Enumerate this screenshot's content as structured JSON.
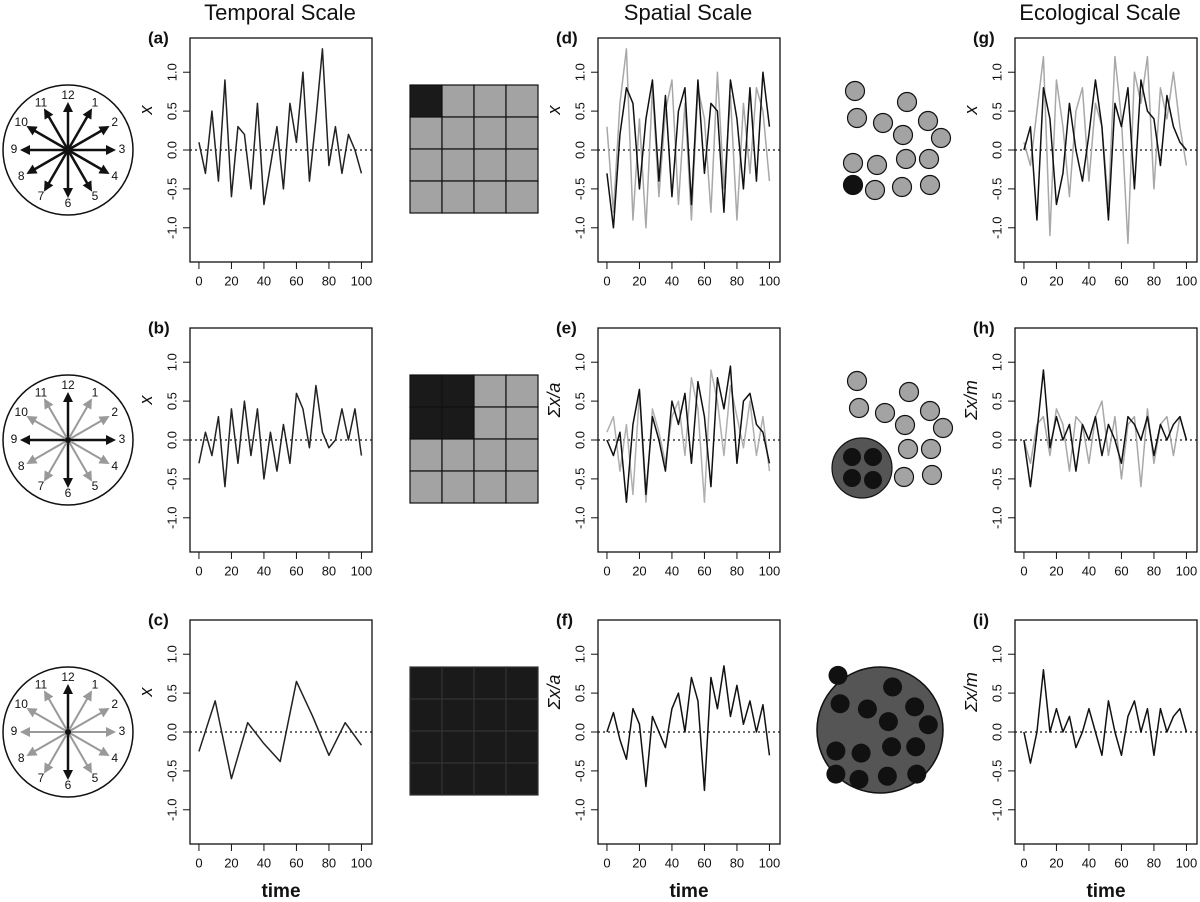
{
  "column_titles": [
    "Temporal Scale",
    "Spatial Scale",
    "Ecological Scale"
  ],
  "clock_numbers": [
    "12",
    "1",
    "2",
    "3",
    "4",
    "5",
    "6",
    "7",
    "8",
    "9",
    "10",
    "11"
  ],
  "chart_data": [
    {
      "type": "line",
      "label": "(a)",
      "ylabel": "x",
      "x": [
        0,
        4,
        8,
        12,
        16,
        20,
        24,
        28,
        32,
        36,
        40,
        44,
        48,
        52,
        56,
        60,
        64,
        68,
        72,
        76,
        80,
        84,
        88,
        92,
        96,
        100
      ],
      "xlim": [
        -5.5,
        106.5
      ],
      "ylim": [
        -1.44,
        1.44
      ],
      "xticks": [
        0,
        20,
        40,
        60,
        80,
        100
      ],
      "yticks": [
        {
          "value": -1,
          "label": "-1.0"
        },
        {
          "value": -0.5,
          "label": "-0.5"
        },
        {
          "value": 0,
          "label": "0.0"
        },
        {
          "value": 0.5,
          "label": "0.5"
        },
        {
          "value": 1,
          "label": "1.0"
        }
      ],
      "series": [
        {
          "color": "#222222",
          "values": [
            0.1,
            -0.3,
            0.5,
            -0.4,
            0.9,
            -0.6,
            0.3,
            0.2,
            -0.5,
            0.6,
            -0.7,
            -0.2,
            0.3,
            -0.5,
            0.6,
            0.1,
            1.0,
            -0.4,
            0.4,
            1.3,
            -0.2,
            0.3,
            -0.3,
            0.2,
            0.0,
            -0.3
          ]
        }
      ]
    },
    {
      "type": "line",
      "label": "(d)",
      "ylabel": "x",
      "x": [
        0,
        4,
        8,
        12,
        16,
        20,
        24,
        28,
        32,
        36,
        40,
        44,
        48,
        52,
        56,
        60,
        64,
        68,
        72,
        76,
        80,
        84,
        88,
        92,
        96,
        100
      ],
      "xlim": [
        -5.5,
        106.5
      ],
      "ylim": [
        -1.44,
        1.44
      ],
      "xticks": [
        0,
        20,
        40,
        60,
        80,
        100
      ],
      "yticks": [
        {
          "value": -1,
          "label": "-1.0"
        },
        {
          "value": -0.5,
          "label": "-0.5"
        },
        {
          "value": 0,
          "label": "0.0"
        },
        {
          "value": 0.5,
          "label": "0.5"
        },
        {
          "value": 1,
          "label": "1.0"
        }
      ],
      "series": [
        {
          "color": "#a8a8a8",
          "values": [
            0.3,
            -0.8,
            0.6,
            1.3,
            -0.9,
            0.4,
            -1.0,
            0.8,
            -0.6,
            0.5,
            0.9,
            -0.7,
            0.6,
            -0.9,
            0.8,
            0.4,
            -0.8,
            1.0,
            -0.5,
            0.7,
            -0.9,
            0.6,
            -0.3,
            0.8,
            0.5,
            -0.4
          ]
        },
        {
          "color": "#111111",
          "values": [
            -0.3,
            -1.0,
            0.2,
            0.8,
            0.6,
            -0.5,
            0.4,
            0.9,
            -0.4,
            0.7,
            -0.6,
            0.5,
            0.8,
            -0.7,
            0.9,
            -0.3,
            0.6,
            0.5,
            -0.8,
            0.9,
            0.4,
            -0.5,
            0.8,
            -0.4,
            1.0,
            0.3
          ]
        }
      ]
    },
    {
      "type": "line",
      "label": "(g)",
      "ylabel": "x",
      "x": [
        0,
        4,
        8,
        12,
        16,
        20,
        24,
        28,
        32,
        36,
        40,
        44,
        48,
        52,
        56,
        60,
        64,
        68,
        72,
        76,
        80,
        84,
        88,
        92,
        96,
        100
      ],
      "xlim": [
        -5.5,
        106.5
      ],
      "ylim": [
        -1.44,
        1.44
      ],
      "xticks": [
        0,
        20,
        40,
        60,
        80,
        100
      ],
      "yticks": [
        {
          "value": -1,
          "label": "-1.0"
        },
        {
          "value": -0.5,
          "label": "-0.5"
        },
        {
          "value": 0,
          "label": "0.0"
        },
        {
          "value": 0.5,
          "label": "0.5"
        },
        {
          "value": 1,
          "label": "1.0"
        }
      ],
      "series": [
        {
          "color": "#a8a8a8",
          "values": [
            0.1,
            -0.2,
            0.5,
            1.2,
            -1.1,
            0.9,
            0.3,
            -0.6,
            0.5,
            0.8,
            -0.4,
            0.6,
            0.3,
            -0.7,
            1.2,
            0.4,
            -1.2,
            1.0,
            0.6,
            1.2,
            -0.5,
            0.8,
            0.4,
            1.0,
            0.3,
            -0.2
          ]
        },
        {
          "color": "#111111",
          "values": [
            0.0,
            0.3,
            -0.9,
            0.8,
            0.4,
            -0.7,
            -0.3,
            0.6,
            0.0,
            -0.4,
            0.2,
            0.9,
            0.3,
            -0.9,
            0.6,
            0.3,
            0.8,
            -0.5,
            0.9,
            0.5,
            0.4,
            -0.2,
            0.7,
            0.3,
            0.1,
            0.0
          ]
        }
      ]
    },
    {
      "type": "line",
      "label": "(b)",
      "ylabel": "x",
      "x": [
        0,
        4,
        8,
        12,
        16,
        20,
        24,
        28,
        32,
        36,
        40,
        44,
        48,
        52,
        56,
        60,
        64,
        68,
        72,
        76,
        80,
        84,
        88,
        92,
        96,
        100
      ],
      "xlim": [
        -5.5,
        106.5
      ],
      "ylim": [
        -1.44,
        1.44
      ],
      "xticks": [
        0,
        20,
        40,
        60,
        80,
        100
      ],
      "yticks": [
        {
          "value": -1,
          "label": "-1.0"
        },
        {
          "value": -0.5,
          "label": "-0.5"
        },
        {
          "value": 0,
          "label": "0.0"
        },
        {
          "value": 0.5,
          "label": "0.5"
        },
        {
          "value": 1,
          "label": "1.0"
        }
      ],
      "series": [
        {
          "color": "#222222",
          "values": [
            -0.3,
            0.1,
            -0.2,
            0.3,
            -0.6,
            0.4,
            -0.3,
            0.5,
            -0.2,
            0.4,
            -0.5,
            0.1,
            -0.4,
            0.2,
            -0.3,
            0.6,
            0.4,
            -0.1,
            0.7,
            0.1,
            -0.1,
            0.0,
            0.4,
            0.0,
            0.4,
            -0.2
          ]
        }
      ]
    },
    {
      "type": "line",
      "label": "(e)",
      "ylabel": "Σx/a",
      "x": [
        0,
        4,
        8,
        12,
        16,
        20,
        24,
        28,
        32,
        36,
        40,
        44,
        48,
        52,
        56,
        60,
        64,
        68,
        72,
        76,
        80,
        84,
        88,
        92,
        96,
        100
      ],
      "xlim": [
        -5.5,
        106.5
      ],
      "ylim": [
        -1.44,
        1.44
      ],
      "xticks": [
        0,
        20,
        40,
        60,
        80,
        100
      ],
      "yticks": [
        {
          "value": -1,
          "label": "-1.0"
        },
        {
          "value": -0.5,
          "label": "-0.5"
        },
        {
          "value": 0,
          "label": "0.0"
        },
        {
          "value": 0.5,
          "label": "0.5"
        },
        {
          "value": 1,
          "label": "1.0"
        }
      ],
      "series": [
        {
          "color": "#b0b0b0",
          "values": [
            0.1,
            0.3,
            -0.4,
            0.2,
            -0.7,
            0.6,
            -0.8,
            0.4,
            0.1,
            -0.3,
            0.3,
            0.5,
            -0.2,
            0.8,
            0.4,
            -0.8,
            0.9,
            0.5,
            -0.2,
            0.7,
            0.3,
            -0.1,
            0.5,
            -0.2,
            0.3,
            -0.4
          ]
        },
        {
          "color": "#111111",
          "values": [
            0.0,
            -0.2,
            0.1,
            -0.8,
            0.2,
            0.65,
            -0.7,
            0.3,
            0.0,
            -0.4,
            0.5,
            0.2,
            0.6,
            -0.3,
            0.75,
            0.3,
            -0.6,
            0.8,
            0.4,
            0.95,
            -0.3,
            0.5,
            0.6,
            0.2,
            0.1,
            -0.3
          ]
        }
      ]
    },
    {
      "type": "line",
      "label": "(h)",
      "ylabel": "Σx/m",
      "x": [
        0,
        4,
        8,
        12,
        16,
        20,
        24,
        28,
        32,
        36,
        40,
        44,
        48,
        52,
        56,
        60,
        64,
        68,
        72,
        76,
        80,
        84,
        88,
        92,
        96,
        100
      ],
      "xlim": [
        -5.5,
        106.5
      ],
      "ylim": [
        -1.44,
        1.44
      ],
      "xticks": [
        0,
        20,
        40,
        60,
        80,
        100
      ],
      "yticks": [
        {
          "value": -1,
          "label": "-1.0"
        },
        {
          "value": -0.5,
          "label": "-0.5"
        },
        {
          "value": 0,
          "label": "0.0"
        },
        {
          "value": 0.5,
          "label": "0.5"
        },
        {
          "value": 1,
          "label": "1.0"
        }
      ],
      "series": [
        {
          "color": "#a8a8a8",
          "values": [
            0.0,
            -0.3,
            0.2,
            0.3,
            -0.2,
            0.4,
            0.2,
            -0.4,
            0.3,
            0.2,
            -0.3,
            0.3,
            0.5,
            -0.2,
            0.3,
            -0.5,
            0.2,
            0.3,
            -0.6,
            0.4,
            -0.3,
            0.2,
            0.3,
            -0.2,
            0.3,
            0.0
          ]
        },
        {
          "color": "#111111",
          "values": [
            0.0,
            -0.6,
            0.1,
            0.9,
            -0.1,
            0.3,
            0.0,
            0.2,
            -0.4,
            0.2,
            0.0,
            0.3,
            -0.2,
            0.2,
            0.0,
            -0.3,
            0.3,
            0.2,
            0.0,
            0.3,
            -0.2,
            0.2,
            0.0,
            0.2,
            0.3,
            0.0
          ]
        }
      ]
    },
    {
      "type": "line",
      "label": "(c)",
      "ylabel": "x",
      "xlabel": "time",
      "x": [
        0,
        10,
        20,
        30,
        40,
        50,
        60,
        70,
        80,
        90,
        100
      ],
      "xlim": [
        -5.5,
        106.5
      ],
      "ylim": [
        -1.44,
        1.44
      ],
      "xticks": [
        0,
        20,
        40,
        60,
        80,
        100
      ],
      "yticks": [
        {
          "value": -1,
          "label": "-1.0"
        },
        {
          "value": -0.5,
          "label": "-0.5"
        },
        {
          "value": 0,
          "label": "0.0"
        },
        {
          "value": 0.5,
          "label": "0.5"
        },
        {
          "value": 1,
          "label": "1.0"
        }
      ],
      "series": [
        {
          "color": "#222222",
          "values": [
            -0.25,
            0.4,
            -0.6,
            0.12,
            -0.15,
            -0.38,
            0.65,
            0.2,
            -0.3,
            0.12,
            -0.17
          ]
        }
      ]
    },
    {
      "type": "line",
      "label": "(f)",
      "ylabel": "Σx/a",
      "xlabel": "time",
      "x": [
        0,
        4,
        8,
        12,
        16,
        20,
        24,
        28,
        32,
        36,
        40,
        44,
        48,
        52,
        56,
        60,
        64,
        68,
        72,
        76,
        80,
        84,
        88,
        92,
        96,
        100
      ],
      "xlim": [
        -5.5,
        106.5
      ],
      "ylim": [
        -1.44,
        1.44
      ],
      "xticks": [
        0,
        20,
        40,
        60,
        80,
        100
      ],
      "yticks": [
        {
          "value": -1,
          "label": "-1.0"
        },
        {
          "value": -0.5,
          "label": "-0.5"
        },
        {
          "value": 0,
          "label": "0.0"
        },
        {
          "value": 0.5,
          "label": "0.5"
        },
        {
          "value": 1,
          "label": "1.0"
        }
      ],
      "series": [
        {
          "color": "#111111",
          "values": [
            0.0,
            0.25,
            -0.1,
            -0.35,
            0.3,
            0.1,
            -0.7,
            0.2,
            0.0,
            -0.2,
            0.3,
            0.5,
            0.0,
            0.7,
            0.4,
            -0.75,
            0.7,
            0.3,
            0.85,
            0.2,
            0.6,
            0.1,
            0.4,
            0.0,
            0.35,
            -0.3
          ]
        }
      ]
    },
    {
      "type": "line",
      "label": "(i)",
      "ylabel": "Σx/m",
      "xlabel": "time",
      "x": [
        0,
        4,
        8,
        12,
        16,
        20,
        24,
        28,
        32,
        36,
        40,
        44,
        48,
        52,
        56,
        60,
        64,
        68,
        72,
        76,
        80,
        84,
        88,
        92,
        96,
        100
      ],
      "xlim": [
        -5.5,
        106.5
      ],
      "ylim": [
        -1.44,
        1.44
      ],
      "xticks": [
        0,
        20,
        40,
        60,
        80,
        100
      ],
      "yticks": [
        {
          "value": -1,
          "label": "-1.0"
        },
        {
          "value": -0.5,
          "label": "-0.5"
        },
        {
          "value": 0,
          "label": "0.0"
        },
        {
          "value": 0.5,
          "label": "0.5"
        },
        {
          "value": 1,
          "label": "1.0"
        }
      ],
      "series": [
        {
          "color": "#111111",
          "values": [
            0.0,
            -0.4,
            0.0,
            0.8,
            0.0,
            0.3,
            0.0,
            0.2,
            -0.2,
            0.0,
            0.3,
            0.0,
            -0.3,
            0.4,
            0.0,
            -0.3,
            0.2,
            0.4,
            0.0,
            0.3,
            -0.3,
            0.3,
            0.0,
            0.2,
            0.3,
            0.0
          ]
        }
      ]
    }
  ]
}
